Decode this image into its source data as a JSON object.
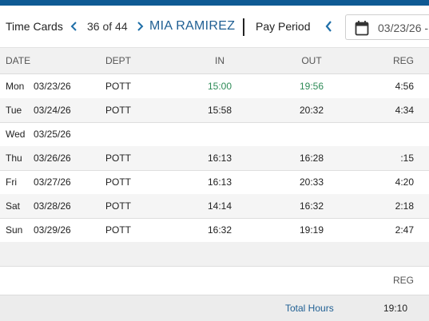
{
  "header": {
    "time_cards_label": "Time Cards",
    "counter": "36 of 44",
    "employee_name": "MIA RAMIREZ",
    "pay_period_label": "Pay Period",
    "date_value": "03/23/26 -"
  },
  "columns": {
    "date": "DATE",
    "dept": "DEPT",
    "in": "IN",
    "out": "OUT",
    "reg": "REG"
  },
  "rows": [
    {
      "day": "Mon",
      "date": "03/23/26",
      "dept": "POTT",
      "in": "15:00",
      "out": "19:56",
      "reg": "4:56"
    },
    {
      "day": "Tue",
      "date": "03/24/26",
      "dept": "POTT",
      "in": "15:58",
      "out": "20:32",
      "reg": "4:34"
    },
    {
      "day": "Wed",
      "date": "03/25/26",
      "dept": "",
      "in": "",
      "out": "",
      "reg": ""
    },
    {
      "day": "Thu",
      "date": "03/26/26",
      "dept": "POTT",
      "in": "16:13",
      "out": "16:28",
      "reg": ":15"
    },
    {
      "day": "Fri",
      "date": "03/27/26",
      "dept": "POTT",
      "in": "16:13",
      "out": "20:33",
      "reg": "4:20"
    },
    {
      "day": "Sat",
      "date": "03/28/26",
      "dept": "POTT",
      "in": "14:14",
      "out": "16:32",
      "reg": "2:18"
    },
    {
      "day": "Sun",
      "date": "03/29/26",
      "dept": "POTT",
      "in": "16:32",
      "out": "19:19",
      "reg": "2:47"
    }
  ],
  "totals": {
    "reg_header": "REG",
    "label": "Total Hours",
    "reg_value": "19:10"
  },
  "colors": {
    "accent": "#1f5f93",
    "top_bar": "#0f5a94",
    "highlight_time": "#2e8b57"
  },
  "icons": {
    "prev": "chevron-left-icon",
    "next": "chevron-right-icon",
    "calendar": "calendar-icon"
  }
}
